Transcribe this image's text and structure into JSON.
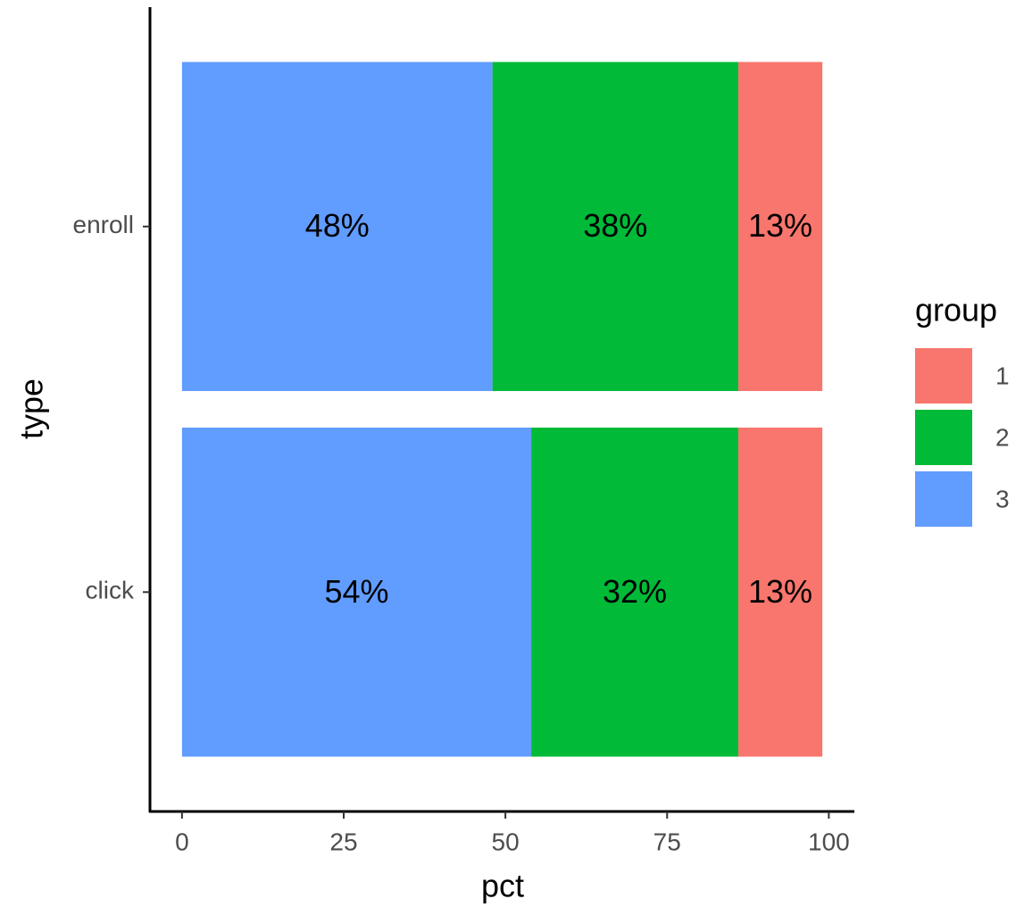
{
  "chart_data": {
    "type": "bar",
    "orientation": "horizontal",
    "stacked": true,
    "categories": [
      "click",
      "enroll"
    ],
    "series": [
      {
        "name": "1",
        "color": "#F8766D",
        "values": [
          13,
          13
        ],
        "value_labels": [
          "13%",
          "13%"
        ]
      },
      {
        "name": "2",
        "color": "#00BA38",
        "values": [
          32,
          38
        ],
        "value_labels": [
          "32%",
          "38%"
        ]
      },
      {
        "name": "3",
        "color": "#619CFF",
        "values": [
          54,
          48
        ],
        "value_labels": [
          "54%",
          "48%"
        ]
      }
    ],
    "x_label": "pct",
    "y_label": "type",
    "legend_title": "group",
    "legend_position": "right",
    "xlim": [
      -4.95,
      103.95
    ],
    "xticks": [
      0,
      25,
      50,
      75,
      100
    ],
    "grid": false
  }
}
